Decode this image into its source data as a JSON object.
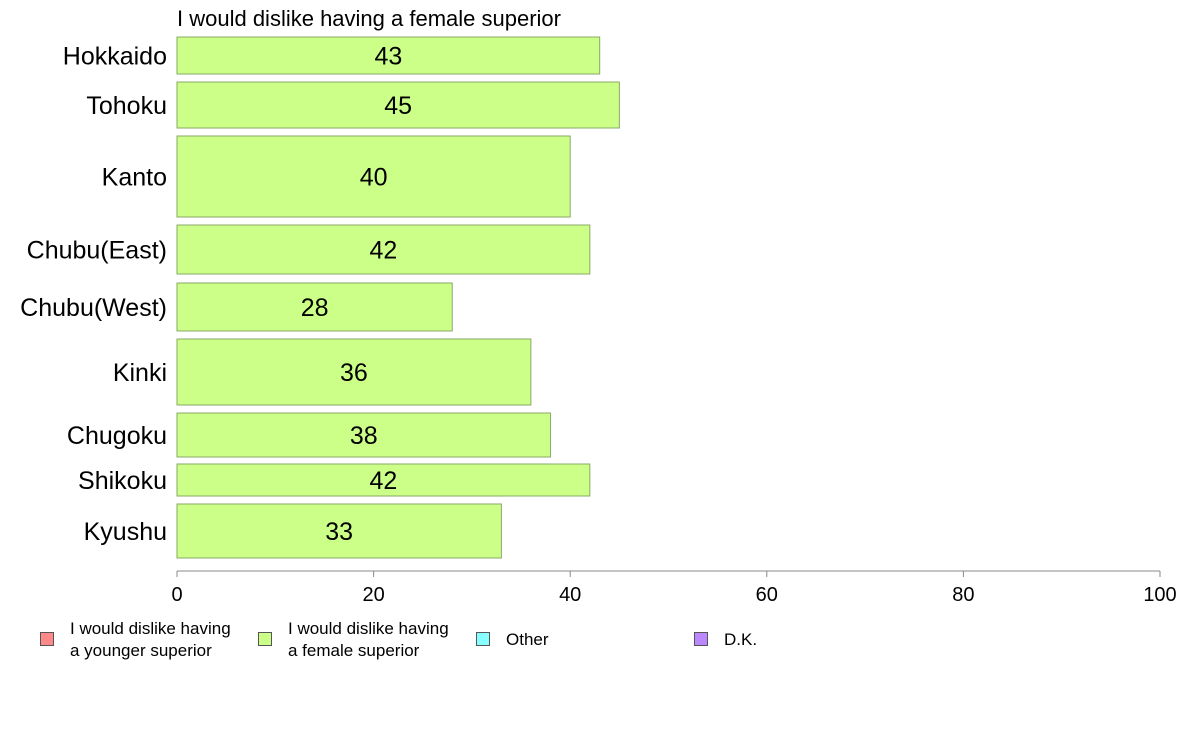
{
  "chart_data": {
    "type": "bar",
    "orientation": "horizontal",
    "title": "I would dislike having a female superior",
    "categories": [
      "Hokkaido",
      "Tohoku",
      "Kanto",
      "Chubu(East)",
      "Chubu(West)",
      "Kinki",
      "Chugoku",
      "Shikoku",
      "Kyushu"
    ],
    "values": [
      43,
      45,
      40,
      42,
      28,
      36,
      38,
      42,
      33
    ],
    "value_labels": [
      "43",
      "45",
      "40",
      "42",
      "28",
      "36",
      "38",
      "42",
      "33"
    ],
    "xlim": [
      0,
      100
    ],
    "xticks": [
      "0",
      "20",
      "40",
      "60",
      "80",
      "100"
    ],
    "grid": false,
    "legend_position": "bottom",
    "bar_color": "#ccff88",
    "bar_border_color": "#88aa66"
  },
  "legend": [
    {
      "label": "I would dislike having\na younger superior",
      "color": "#ff8888"
    },
    {
      "label": "I would dislike having\na female superior",
      "color": "#ccff88"
    },
    {
      "label": "Other",
      "color": "#88ffff"
    },
    {
      "label": "D.K.",
      "color": "#bb88ff"
    }
  ]
}
